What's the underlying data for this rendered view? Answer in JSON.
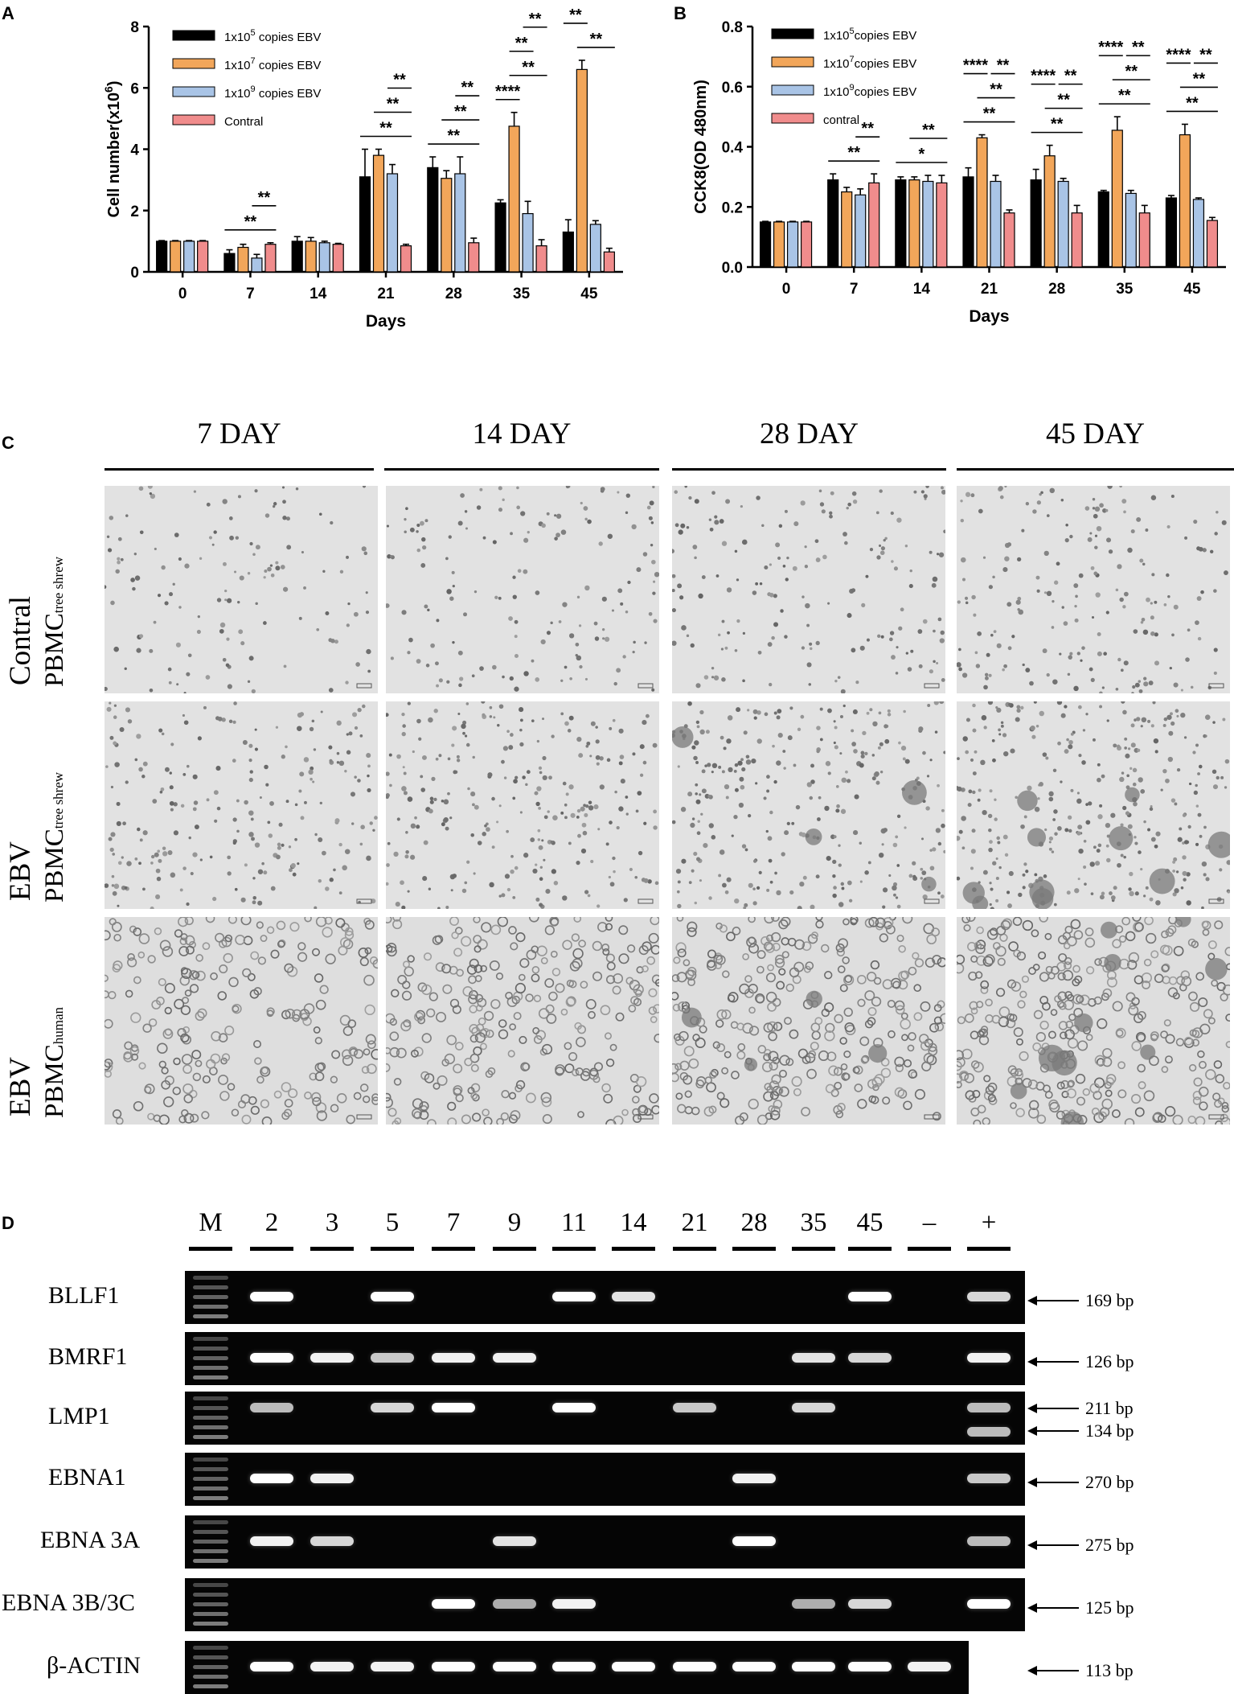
{
  "panels": {
    "a": "A",
    "b": "B",
    "c": "C",
    "d": "D"
  },
  "chart_data": [
    {
      "type": "bar",
      "panel": "A",
      "categories": [
        "0",
        "7",
        "14",
        "21",
        "28",
        "35",
        "45"
      ],
      "xlabel": "Days",
      "ylabel": "Cell number(x10",
      "ylabel_sup": "6",
      "ylabel_end": ")",
      "ylim": [
        0,
        8
      ],
      "yticks": [
        "0",
        "2",
        "4",
        "6",
        "8"
      ],
      "series": [
        {
          "name": "1x10",
          "sup": "5",
          "suffix": " copies EBV",
          "color": "#000000",
          "values": [
            1.0,
            0.6,
            1.0,
            3.1,
            3.4,
            2.25,
            1.3
          ],
          "err": [
            0.02,
            0.12,
            0.15,
            0.9,
            0.35,
            0.1,
            0.4
          ]
        },
        {
          "name": "1x10",
          "sup": "7",
          "suffix": " copies EBV",
          "color": "#f2a65a",
          "values": [
            1.0,
            0.8,
            1.0,
            3.8,
            3.05,
            4.75,
            6.6
          ],
          "err": [
            0.02,
            0.1,
            0.12,
            0.2,
            0.25,
            0.45,
            0.3
          ]
        },
        {
          "name": "1x10",
          "sup": "9",
          "suffix": " copies EBV",
          "color": "#a9c4e6",
          "values": [
            1.0,
            0.45,
            0.95,
            3.2,
            3.2,
            1.9,
            1.55
          ],
          "err": [
            0.02,
            0.12,
            0.05,
            0.3,
            0.55,
            0.4,
            0.12
          ]
        },
        {
          "name": "Contral",
          "sup": "",
          "suffix": "",
          "color": "#f08c8c",
          "values": [
            1.0,
            0.9,
            0.9,
            0.85,
            0.95,
            0.85,
            0.65
          ],
          "err": [
            0.02,
            0.05,
            0.03,
            0.05,
            0.15,
            0.2,
            0.12
          ]
        }
      ],
      "significance": [
        {
          "day": 1,
          "from": 0,
          "to": 3,
          "label": "**"
        },
        {
          "day": 1,
          "from": 2,
          "to": 3,
          "label": "**"
        },
        {
          "day": 3,
          "from": 0,
          "to": 3,
          "label": "**"
        },
        {
          "day": 3,
          "from": 1,
          "to": 3,
          "label": "**"
        },
        {
          "day": 3,
          "from": 2,
          "to": 3,
          "label": "**"
        },
        {
          "day": 4,
          "from": 0,
          "to": 3,
          "label": "**"
        },
        {
          "day": 4,
          "from": 1,
          "to": 3,
          "label": "**"
        },
        {
          "day": 4,
          "from": 2,
          "to": 3,
          "label": "**"
        },
        {
          "day": 5,
          "from": 0,
          "to": 1,
          "label": "****"
        },
        {
          "day": 5,
          "from": 1,
          "to": 3,
          "label": "**"
        },
        {
          "day": 5,
          "from": 1,
          "to": 2,
          "label": "**"
        },
        {
          "day": 5,
          "from": 2,
          "to": 3,
          "label": "**"
        },
        {
          "day": 6,
          "from": 1,
          "to": 3,
          "label": "**"
        },
        {
          "day": 6,
          "from": 0,
          "to": 1,
          "label": "**"
        },
        {
          "day": 6,
          "from": 1,
          "to": 2,
          "label": "**"
        },
        {
          "day": 6,
          "from": 2,
          "to": 3,
          "label": "**"
        }
      ]
    },
    {
      "type": "bar",
      "panel": "B",
      "categories": [
        "0",
        "7",
        "14",
        "21",
        "28",
        "35",
        "45"
      ],
      "xlabel": "Days",
      "ylabel": "CCK8(OD 480nm)",
      "ylabel_sup": "",
      "ylabel_end": "",
      "ylim": [
        0,
        0.8
      ],
      "yticks": [
        "0.0",
        "0.2",
        "0.4",
        "0.6",
        "0.8"
      ],
      "series": [
        {
          "name": "1x10",
          "sup": "5",
          "suffix": "copies EBV",
          "color": "#000000",
          "values": [
            0.15,
            0.29,
            0.29,
            0.3,
            0.29,
            0.25,
            0.23
          ],
          "err": [
            0.002,
            0.02,
            0.01,
            0.03,
            0.035,
            0.005,
            0.008
          ]
        },
        {
          "name": "1x10",
          "sup": "7",
          "suffix": "copies EBV",
          "color": "#f2a65a",
          "values": [
            0.15,
            0.25,
            0.29,
            0.43,
            0.37,
            0.455,
            0.44
          ],
          "err": [
            0.002,
            0.015,
            0.01,
            0.01,
            0.035,
            0.045,
            0.035
          ]
        },
        {
          "name": "1x10",
          "sup": "9",
          "suffix": "copies EBV",
          "color": "#a9c4e6",
          "values": [
            0.15,
            0.24,
            0.285,
            0.285,
            0.285,
            0.245,
            0.225
          ],
          "err": [
            0.002,
            0.02,
            0.02,
            0.02,
            0.01,
            0.01,
            0.005
          ]
        },
        {
          "name": "contral",
          "sup": "",
          "suffix": "",
          "color": "#f08c8c",
          "values": [
            0.15,
            0.28,
            0.28,
            0.18,
            0.18,
            0.18,
            0.155
          ],
          "err": [
            0.002,
            0.03,
            0.025,
            0.01,
            0.025,
            0.025,
            0.01
          ]
        }
      ],
      "significance": [
        {
          "day": 1,
          "from": 0,
          "to": 3,
          "label": "**"
        },
        {
          "day": 1,
          "from": 2,
          "to": 3,
          "label": "**"
        },
        {
          "day": 2,
          "from": 0,
          "to": 3,
          "label": "*"
        },
        {
          "day": 2,
          "from": 1,
          "to": 3,
          "label": "**"
        },
        {
          "day": 3,
          "from": 0,
          "to": 3,
          "label": "**"
        },
        {
          "day": 3,
          "from": 1,
          "to": 3,
          "label": "**"
        },
        {
          "day": 3,
          "from": 0,
          "to": 1,
          "label": "****"
        },
        {
          "day": 3,
          "from": 2,
          "to": 3,
          "label": "**"
        },
        {
          "day": 4,
          "from": 0,
          "to": 3,
          "label": "**"
        },
        {
          "day": 4,
          "from": 1,
          "to": 3,
          "label": "**"
        },
        {
          "day": 4,
          "from": 0,
          "to": 1,
          "label": "****"
        },
        {
          "day": 4,
          "from": 2,
          "to": 3,
          "label": "**"
        },
        {
          "day": 5,
          "from": 0,
          "to": 3,
          "label": "**"
        },
        {
          "day": 5,
          "from": 1,
          "to": 3,
          "label": "**"
        },
        {
          "day": 5,
          "from": 0,
          "to": 1,
          "label": "****"
        },
        {
          "day": 5,
          "from": 2,
          "to": 3,
          "label": "**"
        },
        {
          "day": 6,
          "from": 0,
          "to": 3,
          "label": "**"
        },
        {
          "day": 6,
          "from": 1,
          "to": 3,
          "label": "**"
        },
        {
          "day": 6,
          "from": 0,
          "to": 1,
          "label": "****"
        },
        {
          "day": 6,
          "from": 2,
          "to": 3,
          "label": "**"
        }
      ]
    }
  ],
  "micro": {
    "columns": [
      "7 DAY",
      "14 DAY",
      "28 DAY",
      "45 DAY"
    ],
    "rows": [
      {
        "group": "Contral",
        "cell": "PBMC",
        "sub": "tree shrew",
        "density": 0.45,
        "tone": "fine"
      },
      {
        "group": "EBV",
        "cell": "PBMC",
        "sub": "tree shrew",
        "density": 0.75,
        "tone": "fine"
      },
      {
        "group": "EBV",
        "cell": "PBMC",
        "sub": "human",
        "density": 0.8,
        "tone": "coarse"
      }
    ]
  },
  "gel": {
    "lanes": [
      "M",
      "2",
      "3",
      "5",
      "7",
      "9",
      "11",
      "14",
      "21",
      "28",
      "35",
      "45",
      "–",
      "+"
    ],
    "genes": [
      {
        "name": "BLLF1",
        "bp": [
          "169 bp"
        ],
        "bands": [
          1,
          0,
          1,
          0,
          0,
          1,
          0.8,
          0,
          0,
          0,
          1,
          0,
          0.7
        ]
      },
      {
        "name": "BMRF1",
        "bp": [
          "126 bp"
        ],
        "bands": [
          1,
          0.9,
          0.6,
          0.9,
          0.9,
          0,
          0,
          0,
          0,
          0.8,
          0.7,
          0,
          0.9
        ]
      },
      {
        "name": "LMP1",
        "bp": [
          "211 bp",
          "134 bp"
        ],
        "bands": [
          0.5,
          0,
          0.7,
          1,
          0,
          1,
          0,
          0.6,
          0,
          0.7,
          0,
          0,
          0.5
        ]
      },
      {
        "name": "EBNA1",
        "bp": [
          "270 bp"
        ],
        "bands": [
          1,
          0.9,
          0,
          0,
          0,
          0,
          0,
          0,
          0.9,
          0,
          0,
          0,
          0.6
        ]
      },
      {
        "name": "EBNA 3A",
        "bp": [
          "275 bp"
        ],
        "bands": [
          0.9,
          0.7,
          0,
          0,
          0.8,
          0,
          0,
          0,
          1,
          0,
          0,
          0,
          0.5
        ]
      },
      {
        "name": "EBNA 3B/3C",
        "bp": [
          "125 bp"
        ],
        "bands": [
          0,
          0,
          0,
          1,
          0.4,
          0.9,
          0,
          0,
          0,
          0.4,
          0.7,
          0,
          1
        ]
      },
      {
        "name": "β-ACTIN",
        "bp": [
          "113 bp"
        ],
        "bands": [
          1,
          0.9,
          0.9,
          1,
          1,
          1,
          1,
          1,
          1,
          1,
          1,
          0.9,
          0
        ]
      }
    ]
  }
}
